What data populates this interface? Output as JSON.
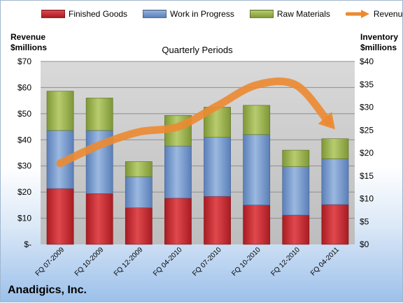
{
  "chart_data": {
    "type": "bar",
    "stacked": true,
    "title": "Quarterly Periods",
    "company": "Anadigics, Inc.",
    "ylabel_left": [
      "Revenue",
      "$millions"
    ],
    "ylabel_right": [
      "Inventory",
      "$millions"
    ],
    "ylim_left": [
      0,
      70
    ],
    "ylim_right": [
      0,
      40
    ],
    "yticks_left": [
      "$-",
      "$10",
      "$20",
      "$30",
      "$40",
      "$50",
      "$60",
      "$70"
    ],
    "yticks_right": [
      "$0",
      "$5",
      "$10",
      "$15",
      "$20",
      "$25",
      "$30",
      "$35",
      "$40"
    ],
    "grid": true,
    "legend_position": "top",
    "categories": [
      "FQ 07-2009",
      "FQ 10-2009",
      "FQ 12-2009",
      "FQ 04-2010",
      "FQ 07-2010",
      "FQ 10-2010",
      "FQ 12-2010",
      "FQ 04-2011"
    ],
    "series": [
      {
        "name": "Finished Goods",
        "axis": "right",
        "color": "#c0272d",
        "values": [
          12.2,
          11.1,
          8.0,
          10.1,
          10.5,
          8.6,
          6.4,
          8.7
        ]
      },
      {
        "name": "Work in Progress",
        "axis": "right",
        "color": "#6f93c9",
        "values": [
          12.7,
          13.8,
          6.8,
          11.4,
          12.9,
          15.4,
          10.6,
          10.0
        ]
      },
      {
        "name": "Raw Materials",
        "axis": "right",
        "color": "#98b04a",
        "values": [
          8.6,
          7.1,
          3.3,
          6.7,
          6.6,
          6.4,
          3.6,
          4.4
        ]
      },
      {
        "name": "Revenue",
        "axis": "left",
        "type": "line",
        "color": "#ec8a31",
        "values": [
          31,
          38,
          43,
          45,
          53,
          61,
          61,
          44
        ]
      }
    ]
  }
}
